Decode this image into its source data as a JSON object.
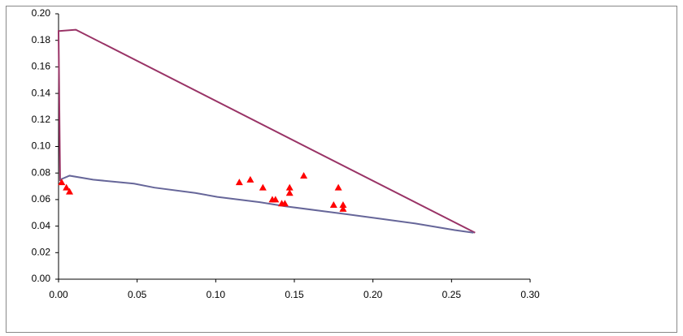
{
  "chart_data": {
    "type": "scatter",
    "xlim": [
      0,
      0.3
    ],
    "xticks": [
      {
        "value": 0,
        "label": "0.00"
      },
      {
        "value": 0.05,
        "label": "0.05"
      },
      {
        "value": 0.1,
        "label": "0.10"
      },
      {
        "value": 0.15,
        "label": "0.15"
      },
      {
        "value": 0.2,
        "label": "0.20"
      },
      {
        "value": 0.25,
        "label": "0.25"
      },
      {
        "value": 0.3,
        "label": "0.30"
      }
    ],
    "ylim": [
      0,
      0.2
    ],
    "yticks": [
      {
        "value": 0,
        "label": "0.00"
      },
      {
        "value": 0.02,
        "label": "0.02"
      },
      {
        "value": 0.04,
        "label": "0.04"
      },
      {
        "value": 0.06,
        "label": "0.06"
      },
      {
        "value": 0.08,
        "label": "0.08"
      },
      {
        "value": 0.1,
        "label": "0.10"
      },
      {
        "value": 0.12,
        "label": "0.12"
      },
      {
        "value": 0.14,
        "label": "0.14"
      },
      {
        "value": 0.16,
        "label": "0.16"
      },
      {
        "value": 0.18,
        "label": "0.18"
      },
      {
        "value": 0.2,
        "label": "0.20"
      }
    ],
    "grid": false,
    "series": [
      {
        "mode": "line",
        "color": "#993366",
        "x": [
          0.001,
          0.0,
          0.011,
          0.265
        ],
        "y": [
          0.074,
          0.187,
          0.188,
          0.035
        ]
      },
      {
        "mode": "line",
        "color": "#666699",
        "x": [
          0.001,
          0.007,
          0.022,
          0.048,
          0.061,
          0.087,
          0.101,
          0.128,
          0.144,
          0.17,
          0.183,
          0.208,
          0.227,
          0.252,
          0.264
        ],
        "y": [
          0.075,
          0.078,
          0.075,
          0.072,
          0.069,
          0.065,
          0.062,
          0.058,
          0.055,
          0.051,
          0.049,
          0.045,
          0.042,
          0.037,
          0.035
        ]
      },
      {
        "mode": "marker",
        "color": "#ff0000",
        "x": [
          0.002,
          0.005,
          0.007,
          0.115,
          0.122,
          0.13,
          0.136,
          0.138,
          0.142,
          0.144,
          0.147,
          0.147,
          0.156,
          0.175,
          0.178,
          0.181,
          0.181
        ],
        "y": [
          0.073,
          0.069,
          0.066,
          0.073,
          0.075,
          0.069,
          0.06,
          0.06,
          0.057,
          0.057,
          0.069,
          0.065,
          0.078,
          0.056,
          0.069,
          0.056,
          0.053
        ]
      }
    ]
  }
}
